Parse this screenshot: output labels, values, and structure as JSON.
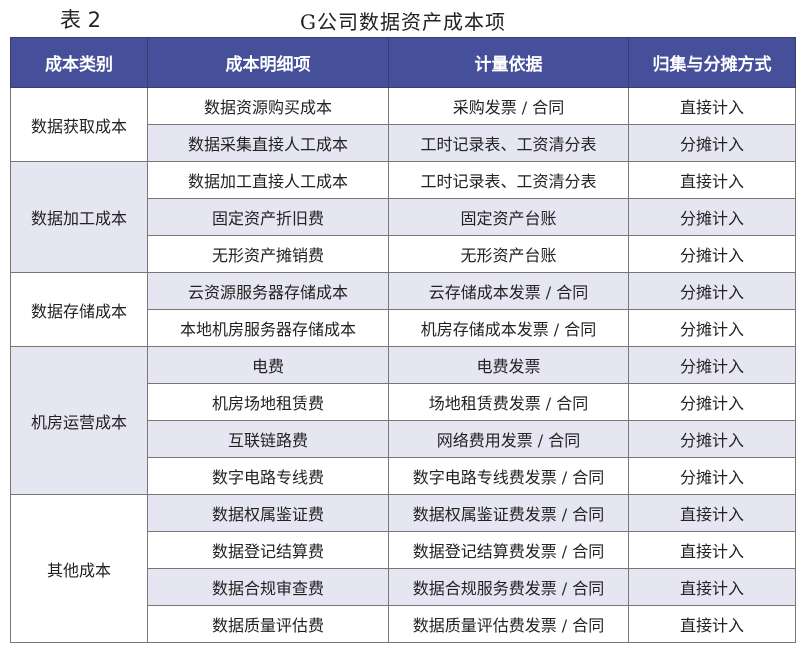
{
  "caption": {
    "label": "表 2",
    "title": "G公司数据资产成本项"
  },
  "headers": [
    "成本类别",
    "成本明细项",
    "计量依据",
    "归集与分摊方式"
  ],
  "groups": [
    {
      "category": "数据获取成本",
      "rows": [
        [
          "数据资源购买成本",
          "采购发票 / 合同",
          "直接计入"
        ],
        [
          "数据采集直接人工成本",
          "工时记录表、工资清分表",
          "分摊计入"
        ]
      ]
    },
    {
      "category": "数据加工成本",
      "rows": [
        [
          "数据加工直接人工成本",
          "工时记录表、工资清分表",
          "直接计入"
        ],
        [
          "固定资产折旧费",
          "固定资产台账",
          "分摊计入"
        ],
        [
          "无形资产摊销费",
          "无形资产台账",
          "分摊计入"
        ]
      ]
    },
    {
      "category": "数据存储成本",
      "rows": [
        [
          "云资源服务器存储成本",
          "云存储成本发票 / 合同",
          "分摊计入"
        ],
        [
          "本地机房服务器存储成本",
          "机房存储成本发票 / 合同",
          "分摊计入"
        ]
      ]
    },
    {
      "category": "机房运营成本",
      "rows": [
        [
          "电费",
          "电费发票",
          "分摊计入"
        ],
        [
          "机房场地租赁费",
          "场地租赁费发票 / 合同",
          "分摊计入"
        ],
        [
          "互联链路费",
          "网络费用发票 / 合同",
          "分摊计入"
        ],
        [
          "数字电路专线费",
          "数字电路专线费发票 / 合同",
          "分摊计入"
        ]
      ]
    },
    {
      "category": "其他成本",
      "rows": [
        [
          "数据权属鉴证费",
          "数据权属鉴证费发票 / 合同",
          "直接计入"
        ],
        [
          "数据登记结算费",
          "数据登记结算费发票 / 合同",
          "直接计入"
        ],
        [
          "数据合规审查费",
          "数据合规服务费发票 / 合同",
          "直接计入"
        ],
        [
          "数据质量评估费",
          "数据质量评估费发票 / 合同",
          "直接计入"
        ]
      ]
    }
  ],
  "colors": {
    "header_bg": "#46509a",
    "shade": "#e6e6f2"
  }
}
